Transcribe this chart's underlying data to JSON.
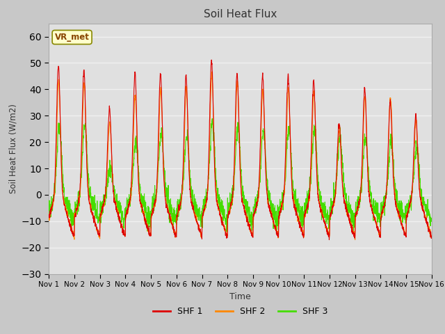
{
  "title": "Soil Heat Flux",
  "xlabel": "Time",
  "ylabel": "Soil Heat Flux (W/m2)",
  "ylim": [
    -30,
    65
  ],
  "yticks": [
    -30,
    -20,
    -10,
    0,
    10,
    20,
    30,
    40,
    50,
    60
  ],
  "xlim": [
    0,
    15
  ],
  "xtick_labels": [
    "Nov 1",
    "Nov 2",
    "Nov 3",
    "Nov 4",
    "Nov 5",
    "Nov 6",
    "Nov 7",
    "Nov 8",
    "Nov 9",
    "Nov 10",
    "Nov 11",
    "Nov 12",
    "Nov 13",
    "Nov 14",
    "Nov 15",
    "Nov 16"
  ],
  "colors": {
    "SHF1": "#dd0000",
    "SHF2": "#ff8800",
    "SHF3": "#44dd00"
  },
  "legend_label": "VR_met",
  "fig_bg_color": "#c8c8c8",
  "plot_bg_color": "#e0e0e0",
  "stripe_color": "#d0d0d0",
  "grid_color": "#f0f0f0",
  "annotation_box_color": "#ffffcc",
  "annotation_edge_color": "#888800",
  "annotation_text_color": "#884400",
  "shf1_peaks": [
    49,
    47,
    33,
    46,
    46,
    45,
    51,
    46,
    45,
    45,
    43,
    27,
    40,
    35,
    30
  ],
  "shf2_peaks": [
    43,
    42,
    27,
    38,
    40,
    40,
    46,
    43,
    40,
    40,
    39,
    25,
    37,
    37,
    28
  ],
  "shf3_peaks": [
    26,
    26,
    11,
    20,
    23,
    22,
    27,
    26,
    24,
    25,
    25,
    22,
    22,
    20,
    18
  ],
  "shf1_night": -20,
  "shf2_night": -20,
  "shf3_night": -13,
  "pts_per_day": 144,
  "n_days": 15
}
